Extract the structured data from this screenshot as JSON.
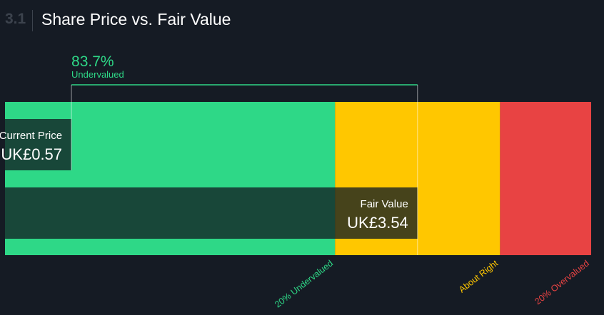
{
  "header": {
    "section_number": "3.1",
    "title": "Share Price vs. Fair Value"
  },
  "chart_data": {
    "type": "bar",
    "title": "Share Price vs. Fair Value",
    "currency_prefix": "UK£",
    "current_price": {
      "label": "Current Price",
      "value": 0.57,
      "display": "UK£0.57"
    },
    "fair_value": {
      "label": "Fair Value",
      "value": 3.54,
      "display": "UK£3.54"
    },
    "discount": {
      "percent": "83.7%",
      "label": "Undervalued"
    },
    "x_range": [
      0,
      5.03
    ],
    "zones": [
      {
        "name": "undervalued",
        "from": 0,
        "to": 2.832,
        "color": "#2ed887",
        "label": "20% Undervalued",
        "label_color": "#2ed887"
      },
      {
        "name": "about-right",
        "from": 2.832,
        "to": 4.248,
        "color": "#ffc700",
        "label": "About Right",
        "label_color": "#ffc700"
      },
      {
        "name": "overvalued",
        "from": 4.248,
        "to": 5.03,
        "color": "#e84343",
        "label": "20% Overvalued",
        "label_color": "#e84343"
      }
    ]
  }
}
